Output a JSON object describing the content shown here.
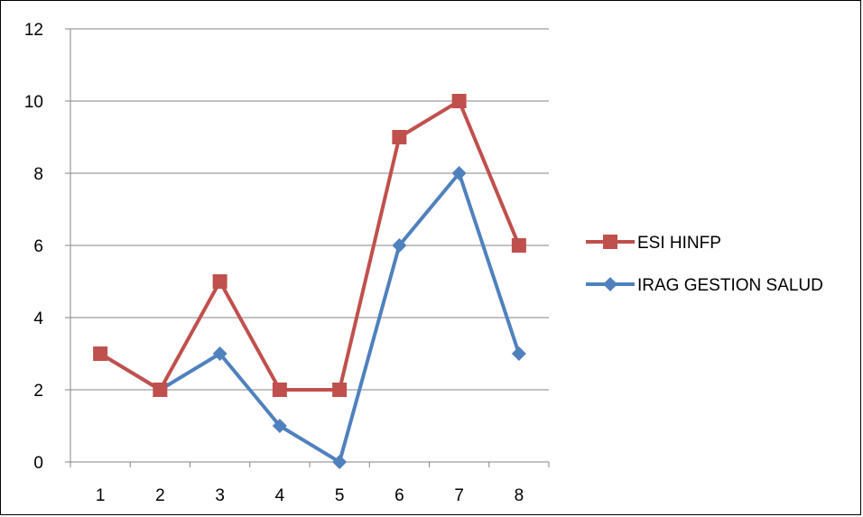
{
  "chart_data": {
    "type": "line",
    "title": "",
    "xlabel": "",
    "ylabel": "",
    "categories": [
      "1",
      "2",
      "3",
      "4",
      "5",
      "6",
      "7",
      "8"
    ],
    "ylim": [
      0,
      12
    ],
    "yticks": [
      0,
      2,
      4,
      6,
      8,
      10,
      12
    ],
    "grid": true,
    "legend_position": "right",
    "series": [
      {
        "name": "ESI HINFP",
        "color": "#c0504d",
        "marker": "square",
        "values": [
          3,
          2,
          5,
          2,
          2,
          9,
          10,
          6
        ]
      },
      {
        "name": "IRAG GESTION SALUD",
        "color": "#4f81bd",
        "marker": "diamond",
        "values": [
          3,
          2,
          3,
          1,
          0,
          6,
          8,
          3
        ]
      }
    ]
  }
}
